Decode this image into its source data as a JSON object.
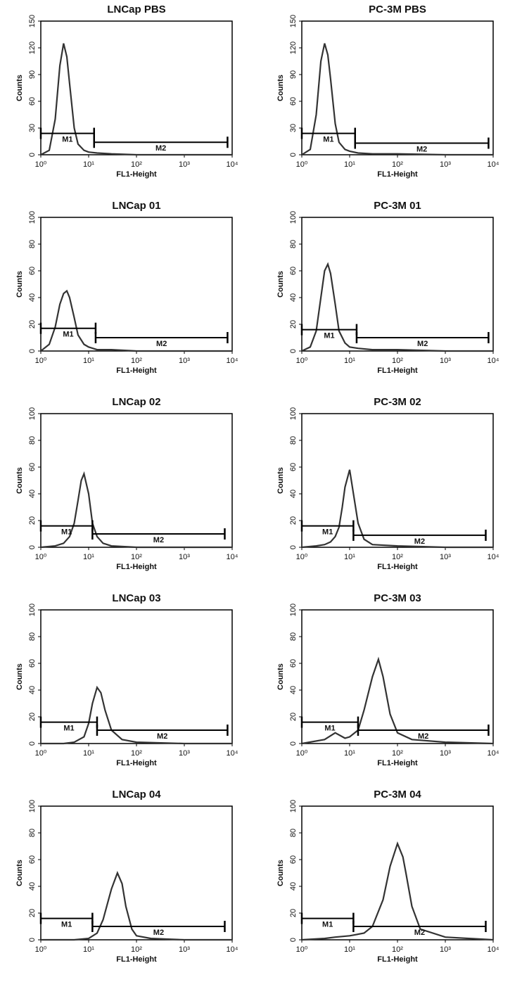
{
  "chart_data": [
    {
      "type": "line",
      "title": "LNCap PBS",
      "xlabel": "FL1-Height",
      "ylabel": "Counts",
      "log_x": true,
      "color": "#333333",
      "xlim": [
        1,
        10000
      ],
      "xticks": [
        {
          "value": 1,
          "label": "10⁰"
        },
        {
          "value": 10,
          "label": "10¹"
        },
        {
          "value": 100,
          "label": "10²"
        },
        {
          "value": 1000,
          "label": "10³"
        },
        {
          "value": 10000,
          "label": "10⁴"
        }
      ],
      "ylim": [
        0,
        150
      ],
      "yticks": [
        0,
        30,
        60,
        90,
        120,
        150
      ],
      "x": [
        1,
        1.5,
        2,
        2.5,
        3,
        3.5,
        4,
        5,
        6,
        8,
        10,
        15,
        30,
        100,
        1000,
        10000
      ],
      "values": [
        0,
        5,
        40,
        100,
        125,
        110,
        80,
        30,
        12,
        5,
        3,
        2,
        1,
        0,
        0,
        0
      ],
      "markers": [
        {
          "label": "M1",
          "range": [
            1,
            13
          ],
          "level": 24
        },
        {
          "label": "M2",
          "range": [
            13,
            8000
          ],
          "level": 14
        }
      ]
    },
    {
      "type": "line",
      "title": "PC-3M PBS",
      "xlabel": "FL1-Height",
      "ylabel": "Counts",
      "log_x": true,
      "color": "#333333",
      "xlim": [
        1,
        10000
      ],
      "xticks": [
        {
          "value": 1,
          "label": "10⁰"
        },
        {
          "value": 10,
          "label": "10¹"
        },
        {
          "value": 100,
          "label": "10²"
        },
        {
          "value": 1000,
          "label": "10³"
        },
        {
          "value": 10000,
          "label": "10⁴"
        }
      ],
      "ylim": [
        0,
        150
      ],
      "yticks": [
        0,
        30,
        60,
        90,
        120,
        150
      ],
      "x": [
        1,
        1.5,
        2,
        2.5,
        3,
        3.5,
        4,
        5,
        6,
        8,
        10,
        15,
        30,
        100,
        1000,
        10000
      ],
      "values": [
        0,
        6,
        45,
        105,
        125,
        112,
        85,
        35,
        14,
        6,
        4,
        2,
        1,
        1,
        0,
        0
      ],
      "markers": [
        {
          "label": "M1",
          "range": [
            1,
            13
          ],
          "level": 24
        },
        {
          "label": "M2",
          "range": [
            13,
            8000
          ],
          "level": 13
        }
      ]
    },
    {
      "type": "line",
      "title": "LNCap 01",
      "xlabel": "FL1-Height",
      "ylabel": "Counts",
      "log_x": true,
      "color": "#333333",
      "xlim": [
        1,
        10000
      ],
      "xticks": [
        {
          "value": 1,
          "label": "10⁰"
        },
        {
          "value": 10,
          "label": "10¹"
        },
        {
          "value": 100,
          "label": "10²"
        },
        {
          "value": 1000,
          "label": "10³"
        },
        {
          "value": 10000,
          "label": "10⁴"
        }
      ],
      "ylim": [
        0,
        100
      ],
      "yticks": [
        0,
        20,
        40,
        60,
        80,
        100
      ],
      "x": [
        1,
        1.5,
        2,
        2.5,
        3,
        3.5,
        4,
        5,
        6,
        8,
        10,
        15,
        30,
        100,
        1000,
        10000
      ],
      "values": [
        0,
        5,
        18,
        35,
        43,
        45,
        40,
        25,
        12,
        5,
        3,
        1,
        1,
        0,
        0,
        0
      ],
      "markers": [
        {
          "label": "M1",
          "range": [
            1,
            14
          ],
          "level": 17
        },
        {
          "label": "M2",
          "range": [
            14,
            8000
          ],
          "level": 10
        }
      ]
    },
    {
      "type": "line",
      "title": "PC-3M 01",
      "xlabel": "FL1-Height",
      "ylabel": "Counts",
      "log_x": true,
      "color": "#333333",
      "xlim": [
        1,
        10000
      ],
      "xticks": [
        {
          "value": 1,
          "label": "10⁰"
        },
        {
          "value": 10,
          "label": "10¹"
        },
        {
          "value": 100,
          "label": "10²"
        },
        {
          "value": 1000,
          "label": "10³"
        },
        {
          "value": 10000,
          "label": "10⁴"
        }
      ],
      "ylim": [
        0,
        100
      ],
      "yticks": [
        0,
        20,
        40,
        60,
        80,
        100
      ],
      "x": [
        1,
        1.5,
        2,
        2.5,
        3,
        3.5,
        4,
        5,
        6,
        8,
        10,
        15,
        30,
        100,
        1000,
        10000
      ],
      "values": [
        0,
        3,
        15,
        40,
        60,
        65,
        58,
        35,
        15,
        6,
        3,
        2,
        1,
        1,
        0,
        0
      ],
      "markers": [
        {
          "label": "M1",
          "range": [
            1,
            14
          ],
          "level": 16
        },
        {
          "label": "M2",
          "range": [
            14,
            8000
          ],
          "level": 10
        }
      ]
    },
    {
      "type": "line",
      "title": "LNCap 02",
      "xlabel": "FL1-Height",
      "ylabel": "Counts",
      "log_x": true,
      "color": "#333333",
      "xlim": [
        1,
        10000
      ],
      "xticks": [
        {
          "value": 1,
          "label": "10⁰"
        },
        {
          "value": 10,
          "label": "10¹"
        },
        {
          "value": 100,
          "label": "10²"
        },
        {
          "value": 1000,
          "label": "10³"
        },
        {
          "value": 10000,
          "label": "10⁴"
        }
      ],
      "ylim": [
        0,
        100
      ],
      "yticks": [
        0,
        20,
        40,
        60,
        80,
        100
      ],
      "x": [
        1,
        2,
        3,
        4,
        5,
        6,
        7,
        8,
        10,
        12,
        15,
        20,
        30,
        100,
        1000,
        10000
      ],
      "values": [
        0,
        1,
        3,
        8,
        18,
        35,
        50,
        55,
        40,
        18,
        8,
        3,
        1,
        0,
        0,
        0
      ],
      "markers": [
        {
          "label": "M1",
          "range": [
            1,
            12
          ],
          "level": 16
        },
        {
          "label": "M2",
          "range": [
            12,
            7000
          ],
          "level": 10
        }
      ]
    },
    {
      "type": "line",
      "title": "PC-3M 02",
      "xlabel": "FL1-Height",
      "ylabel": "Counts",
      "log_x": true,
      "color": "#333333",
      "xlim": [
        1,
        10000
      ],
      "xticks": [
        {
          "value": 1,
          "label": "10⁰"
        },
        {
          "value": 10,
          "label": "10¹"
        },
        {
          "value": 100,
          "label": "10²"
        },
        {
          "value": 1000,
          "label": "10³"
        },
        {
          "value": 10000,
          "label": "10⁴"
        }
      ],
      "ylim": [
        0,
        100
      ],
      "yticks": [
        0,
        20,
        40,
        60,
        80,
        100
      ],
      "x": [
        1,
        2,
        3,
        4,
        5,
        6,
        7,
        8,
        10,
        12,
        15,
        20,
        30,
        100,
        1000,
        10000
      ],
      "values": [
        0,
        1,
        2,
        4,
        8,
        15,
        30,
        45,
        58,
        40,
        18,
        6,
        2,
        1,
        0,
        0
      ],
      "markers": [
        {
          "label": "M1",
          "range": [
            1,
            12
          ],
          "level": 16
        },
        {
          "label": "M2",
          "range": [
            12,
            7000
          ],
          "level": 9
        }
      ]
    },
    {
      "type": "line",
      "title": "LNCap 03",
      "xlabel": "FL1-Height",
      "ylabel": "Counts",
      "log_x": true,
      "color": "#333333",
      "xlim": [
        1,
        10000
      ],
      "xticks": [
        {
          "value": 1,
          "label": "10⁰"
        },
        {
          "value": 10,
          "label": "10¹"
        },
        {
          "value": 100,
          "label": "10²"
        },
        {
          "value": 1000,
          "label": "10³"
        },
        {
          "value": 10000,
          "label": "10⁴"
        }
      ],
      "ylim": [
        0,
        100
      ],
      "yticks": [
        0,
        20,
        40,
        60,
        80,
        100
      ],
      "x": [
        1,
        3,
        5,
        8,
        10,
        12,
        15,
        18,
        22,
        30,
        50,
        100,
        1000,
        10000
      ],
      "values": [
        0,
        0,
        1,
        5,
        15,
        30,
        42,
        38,
        25,
        10,
        3,
        1,
        0,
        0
      ],
      "markers": [
        {
          "label": "M1",
          "range": [
            1,
            15
          ],
          "level": 16
        },
        {
          "label": "M2",
          "range": [
            15,
            8000
          ],
          "level": 10
        }
      ]
    },
    {
      "type": "line",
      "title": "PC-3M 03",
      "xlabel": "FL1-Height",
      "ylabel": "Counts",
      "log_x": true,
      "color": "#333333",
      "xlim": [
        1,
        10000
      ],
      "xticks": [
        {
          "value": 1,
          "label": "10⁰"
        },
        {
          "value": 10,
          "label": "10¹"
        },
        {
          "value": 100,
          "label": "10²"
        },
        {
          "value": 1000,
          "label": "10³"
        },
        {
          "value": 10000,
          "label": "10⁴"
        }
      ],
      "ylim": [
        0,
        100
      ],
      "yticks": [
        0,
        20,
        40,
        60,
        80,
        100
      ],
      "x": [
        1,
        3,
        5,
        8,
        10,
        15,
        20,
        30,
        40,
        50,
        70,
        100,
        200,
        1000,
        10000
      ],
      "values": [
        0,
        3,
        8,
        4,
        5,
        10,
        25,
        50,
        63,
        50,
        22,
        8,
        3,
        1,
        0
      ],
      "markers": [
        {
          "label": "M1",
          "range": [
            1,
            15
          ],
          "level": 16
        },
        {
          "label": "M2",
          "range": [
            15,
            8000
          ],
          "level": 10
        }
      ]
    },
    {
      "type": "line",
      "title": "LNCap 04",
      "xlabel": "FL1-Height",
      "ylabel": "Counts",
      "log_x": true,
      "color": "#333333",
      "xlim": [
        1,
        10000
      ],
      "xticks": [
        {
          "value": 1,
          "label": "10⁰"
        },
        {
          "value": 10,
          "label": "10¹"
        },
        {
          "value": 100,
          "label": "10²"
        },
        {
          "value": 1000,
          "label": "10³"
        },
        {
          "value": 10000,
          "label": "10⁴"
        }
      ],
      "ylim": [
        0,
        100
      ],
      "yticks": [
        0,
        20,
        40,
        60,
        80,
        100
      ],
      "x": [
        1,
        5,
        10,
        15,
        20,
        30,
        40,
        50,
        60,
        80,
        100,
        200,
        1000,
        10000
      ],
      "values": [
        0,
        0,
        1,
        5,
        15,
        38,
        50,
        42,
        25,
        8,
        3,
        1,
        0,
        0
      ],
      "markers": [
        {
          "label": "M1",
          "range": [
            1,
            12
          ],
          "level": 16
        },
        {
          "label": "M2",
          "range": [
            12,
            7000
          ],
          "level": 10
        }
      ]
    },
    {
      "type": "line",
      "title": "PC-3M 04",
      "xlabel": "FL1-Height",
      "ylabel": "Counts",
      "log_x": true,
      "color": "#333333",
      "xlim": [
        1,
        10000
      ],
      "xticks": [
        {
          "value": 1,
          "label": "10⁰"
        },
        {
          "value": 10,
          "label": "10¹"
        },
        {
          "value": 100,
          "label": "10²"
        },
        {
          "value": 1000,
          "label": "10³"
        },
        {
          "value": 10000,
          "label": "10⁴"
        }
      ],
      "ylim": [
        0,
        100
      ],
      "yticks": [
        0,
        20,
        40,
        60,
        80,
        100
      ],
      "x": [
        1,
        3,
        5,
        10,
        20,
        30,
        50,
        70,
        100,
        130,
        150,
        200,
        300,
        1000,
        10000
      ],
      "values": [
        0,
        1,
        2,
        3,
        5,
        10,
        30,
        55,
        72,
        62,
        50,
        25,
        8,
        2,
        0
      ],
      "markers": [
        {
          "label": "M1",
          "range": [
            1,
            12
          ],
          "level": 16
        },
        {
          "label": "M2",
          "range": [
            12,
            7000
          ],
          "level": 10
        }
      ]
    }
  ]
}
